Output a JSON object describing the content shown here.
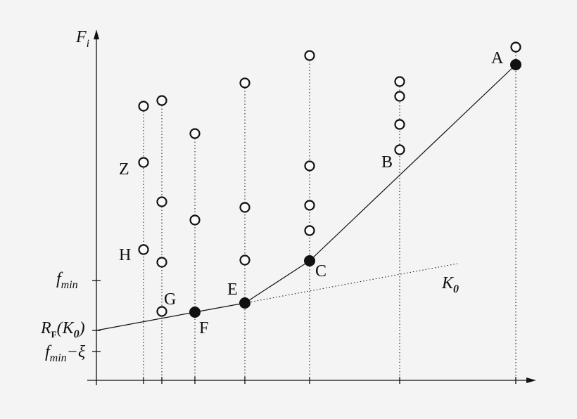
{
  "diagram": {
    "axis_y_label": {
      "main": "F",
      "sub": "i"
    },
    "y_labels": {
      "fmin": {
        "main": "f",
        "sub": "min"
      },
      "rf": {
        "main": "R",
        "sub": "F",
        "tail": "(K",
        "tail_sub": "0",
        "close": ")"
      },
      "fmin_xi": {
        "main": "f",
        "sub": "min",
        "tail": "−ξ"
      }
    },
    "line_label": {
      "main": "K",
      "sub": "0"
    },
    "point_labels": [
      "A",
      "B",
      "C",
      "E",
      "F",
      "G",
      "H",
      "Z"
    ]
  }
}
